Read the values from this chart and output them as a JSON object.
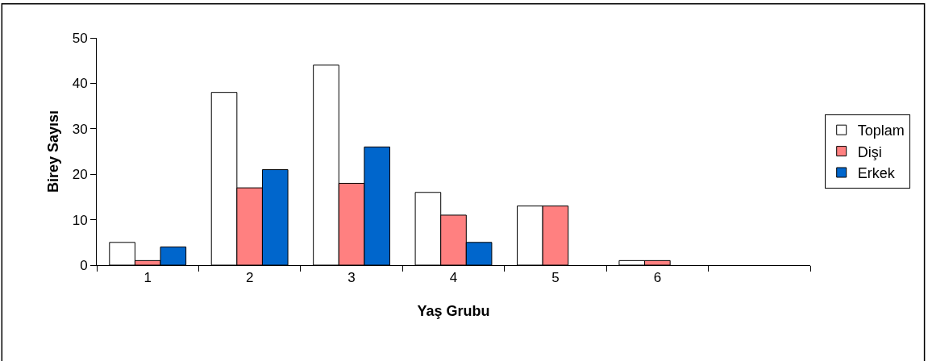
{
  "chart_data": {
    "type": "bar",
    "xlabel": "Yaş Grubu",
    "ylabel": "Birey Sayısı",
    "categories": [
      "1",
      "2",
      "3",
      "4",
      "5",
      "6",
      null
    ],
    "series": [
      {
        "name": "Toplam",
        "color": "#ffffff",
        "values": [
          5,
          38,
          44,
          16,
          13,
          1,
          null
        ]
      },
      {
        "name": "Dişi",
        "color": "#ff8080",
        "values": [
          1,
          17,
          18,
          11,
          13,
          1,
          null
        ]
      },
      {
        "name": "Erkek",
        "color": "#0066cc",
        "values": [
          4,
          21,
          26,
          5,
          null,
          null,
          null
        ]
      }
    ],
    "ylim": [
      0,
      50
    ],
    "yticks": [
      0,
      10,
      20,
      30,
      40,
      50
    ],
    "legend": "right"
  }
}
